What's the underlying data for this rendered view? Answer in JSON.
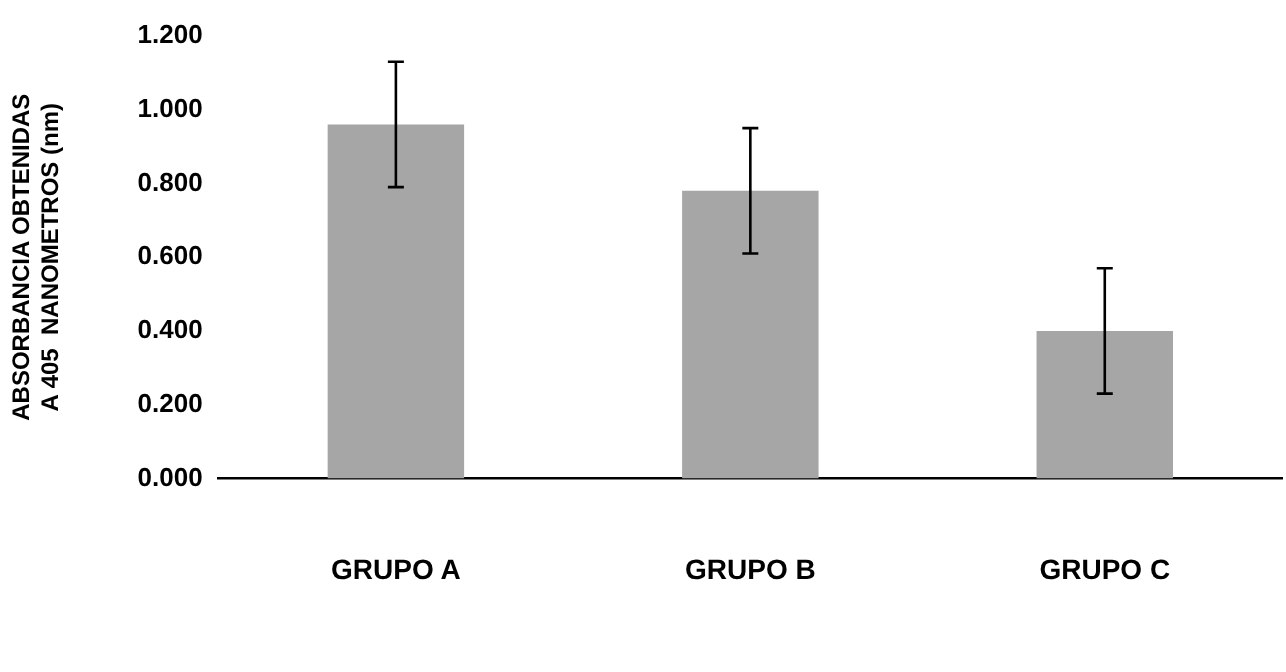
{
  "chart_data": {
    "type": "bar",
    "ylabel": "ABSORBANCIA OBTENIDAS A 405  NANOMETROS (nm)",
    "categories": [
      "GRUPO A",
      "GRUPO B",
      "GRUPO C"
    ],
    "values": [
      0.96,
      0.78,
      0.4
    ],
    "errors": [
      0.17,
      0.17,
      0.17
    ],
    "color": "#a6a6a6",
    "ylim": [
      0,
      1.2
    ],
    "yticks": [
      {
        "value": 0,
        "label": "0.000"
      },
      {
        "value": 0.2,
        "label": "0.200"
      },
      {
        "value": 0.4,
        "label": "0.400"
      },
      {
        "value": 0.6,
        "label": "0.600"
      },
      {
        "value": 0.8,
        "label": "0.800"
      },
      {
        "value": 1,
        "label": "1.000"
      },
      {
        "value": 1.2,
        "label": "1.200"
      }
    ],
    "grid": false,
    "legend": false
  }
}
